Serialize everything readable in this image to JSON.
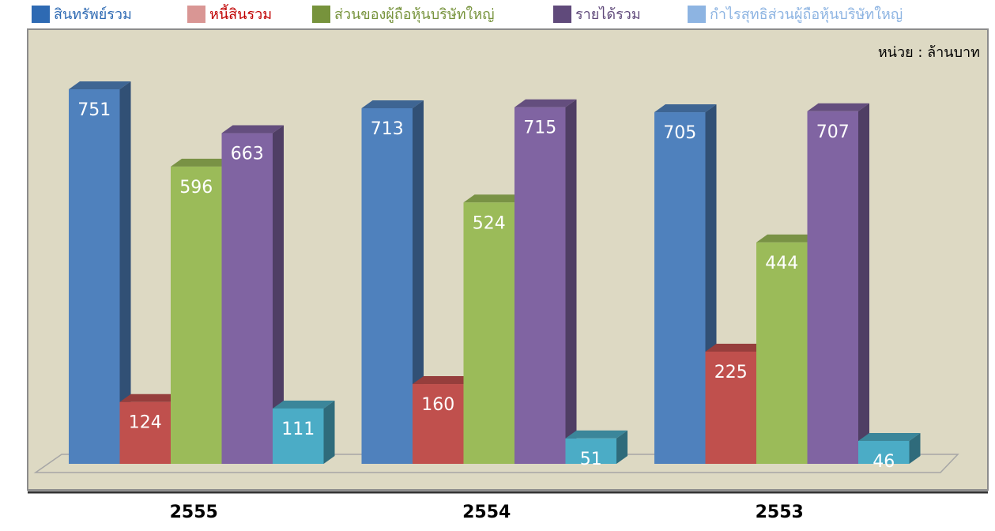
{
  "chart_data": {
    "type": "bar3d",
    "unit": "หน่วย : ล้านบาท",
    "categories": [
      "2555",
      "2554",
      "2553"
    ],
    "series": [
      {
        "name": "สินทรัพย์รวม",
        "legend_color": "#2e6ab3",
        "color": "#4f81bd",
        "values": [
          751,
          713,
          705
        ]
      },
      {
        "name": "หนี้สินรวม",
        "legend_color": "#d99694",
        "text_color": "#c00000",
        "color": "#c0504d",
        "values": [
          124,
          160,
          225
        ]
      },
      {
        "name": "ส่วนของผู้ถือหุ้นบริษัทใหญ่",
        "legend_color": "#77933c",
        "text_color": "#77933c",
        "color": "#9bbb59",
        "values": [
          596,
          524,
          444
        ]
      },
      {
        "name": "รายได้รวม",
        "legend_color": "#604a7b",
        "color": "#8064a2",
        "values": [
          663,
          715,
          707
        ]
      },
      {
        "name": "กำไรสุทธิส่วนผู้ถือหุ้นบริษัทใหญ่",
        "legend_color": "#8db4e2",
        "color": "#4bacc6",
        "values": [
          111,
          51,
          46
        ]
      }
    ]
  }
}
